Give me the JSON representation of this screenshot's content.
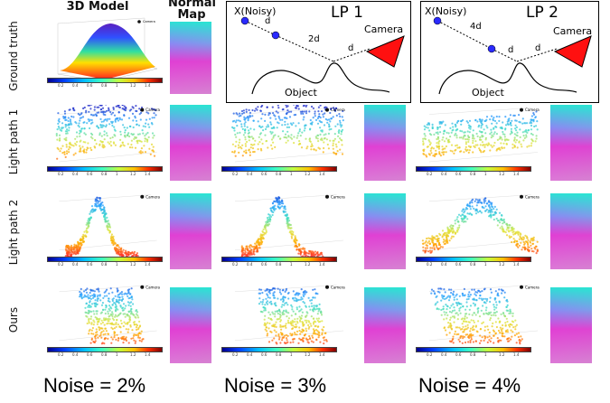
{
  "headers": {
    "model_3d": "3D Model",
    "normal_map_line1": "Normal",
    "normal_map_line2": "Map"
  },
  "row_labels": [
    "Ground truth",
    "Light path 1",
    "Light path 2",
    "Ours"
  ],
  "camera_label": "Camera",
  "colorbar_ticks": [
    "0.2",
    "0.4",
    "0.6",
    "0.8",
    "1",
    "1.2",
    "1.4"
  ],
  "diagrams": [
    {
      "title": "LP 1",
      "noisy_label": "X(Noisy)",
      "far_label": "2d",
      "near_label": "d",
      "camera_label": "Camera",
      "object_label": "Object"
    },
    {
      "title": "LP 2",
      "noisy_label": "X(Noisy)",
      "far_label": "4d",
      "mid_label": "d",
      "near_label": "d",
      "camera_label": "Camera",
      "object_label": "Object"
    }
  ],
  "noise_labels": [
    "Noise = 2%",
    "Noise = 3%",
    "Noise = 4%"
  ],
  "colors": {
    "point_blue": "#2a2aff",
    "camera_red": "#ff1010"
  }
}
